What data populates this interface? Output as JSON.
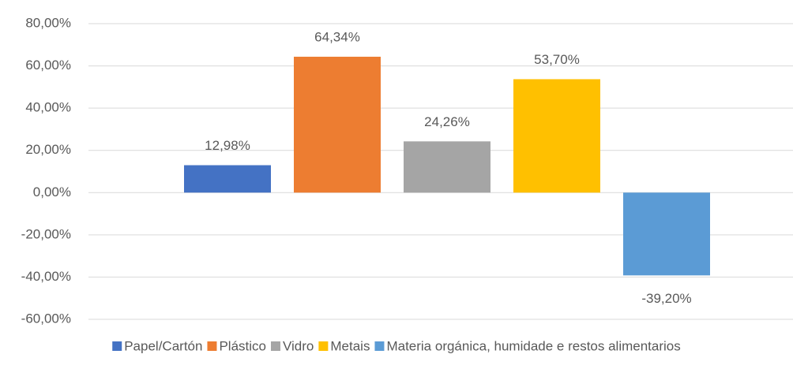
{
  "chart_data": {
    "type": "bar",
    "categories": [
      null
    ],
    "series": [
      {
        "name": "Papel/Cartón",
        "color": "#4472c4",
        "values": [
          12.98
        ],
        "value_labels": [
          "12,98%"
        ]
      },
      {
        "name": "Plástico",
        "color": "#ed7d31",
        "values": [
          64.34
        ],
        "value_labels": [
          "64,34%"
        ]
      },
      {
        "name": "Vidro",
        "color": "#a5a5a5",
        "values": [
          24.26
        ],
        "value_labels": [
          "24,26%"
        ]
      },
      {
        "name": "Metais",
        "color": "#ffc000",
        "values": [
          53.7
        ],
        "value_labels": [
          "53,70%"
        ]
      },
      {
        "name": "Materia orgánica, humidade e restos alimentarios",
        "color": "#5b9bd5",
        "values": [
          -39.2
        ],
        "value_labels": [
          "-39,20%"
        ]
      }
    ],
    "ylim": [
      -60,
      80
    ],
    "yticks": [
      {
        "value": -60,
        "label": "-60,00%"
      },
      {
        "value": -40,
        "label": "-40,00%"
      },
      {
        "value": -20,
        "label": "-20,00%"
      },
      {
        "value": 0,
        "label": "0,00%"
      },
      {
        "value": 20,
        "label": "20,00%"
      },
      {
        "value": 40,
        "label": "40,00%"
      },
      {
        "value": 60,
        "label": "60,00%"
      },
      {
        "value": 80,
        "label": "80,00%"
      }
    ],
    "grid": true,
    "legend": "bottom"
  }
}
